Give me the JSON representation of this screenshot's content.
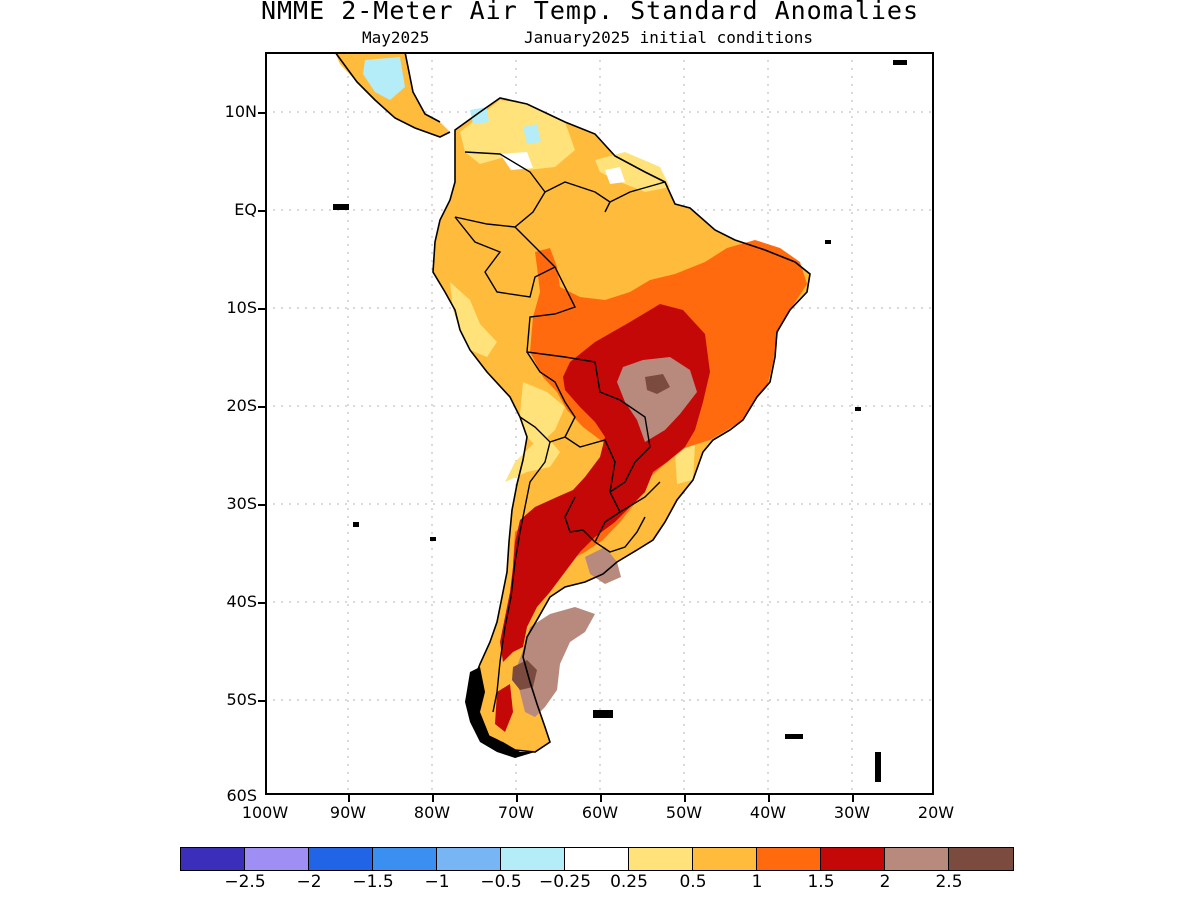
{
  "title": "NMME 2-Meter Air Temp. Standard Anomalies",
  "subtitle_left": "May2025",
  "subtitle_right": "January2025 initial conditions",
  "latitude_labels": [
    "10N",
    "EQ",
    "10S",
    "20S",
    "30S",
    "40S",
    "50S",
    "60S"
  ],
  "longitude_labels": [
    "100W",
    "90W",
    "80W",
    "70W",
    "60W",
    "50W",
    "40W",
    "30W",
    "20W"
  ],
  "legend": {
    "colors": [
      "#3b2ebb",
      "#9f8ff5",
      "#2164e5",
      "#3b8ff0",
      "#78b5f5",
      "#b4ecf7",
      "#ffffff",
      "#ffe27a",
      "#ffbb3b",
      "#ff6a0f",
      "#c40808",
      "#b8897d",
      "#7b4b3f"
    ],
    "labels": [
      "-2.5",
      "-2",
      "-1.5",
      "-1",
      "-0.5",
      "-0.25",
      "0.25",
      "0.5",
      "1",
      "1.5",
      "2",
      "2.5"
    ]
  },
  "map_colors": {
    "land_base": "#ffbb3b",
    "warm_06": "#ffe27a",
    "warm_15": "#ff6a0f",
    "warm_20": "#c40808",
    "warm_25": "#b8897d",
    "warm_30": "#7b4b3f",
    "cool_05": "#b4ecf7",
    "neutral": "#ffffff"
  }
}
